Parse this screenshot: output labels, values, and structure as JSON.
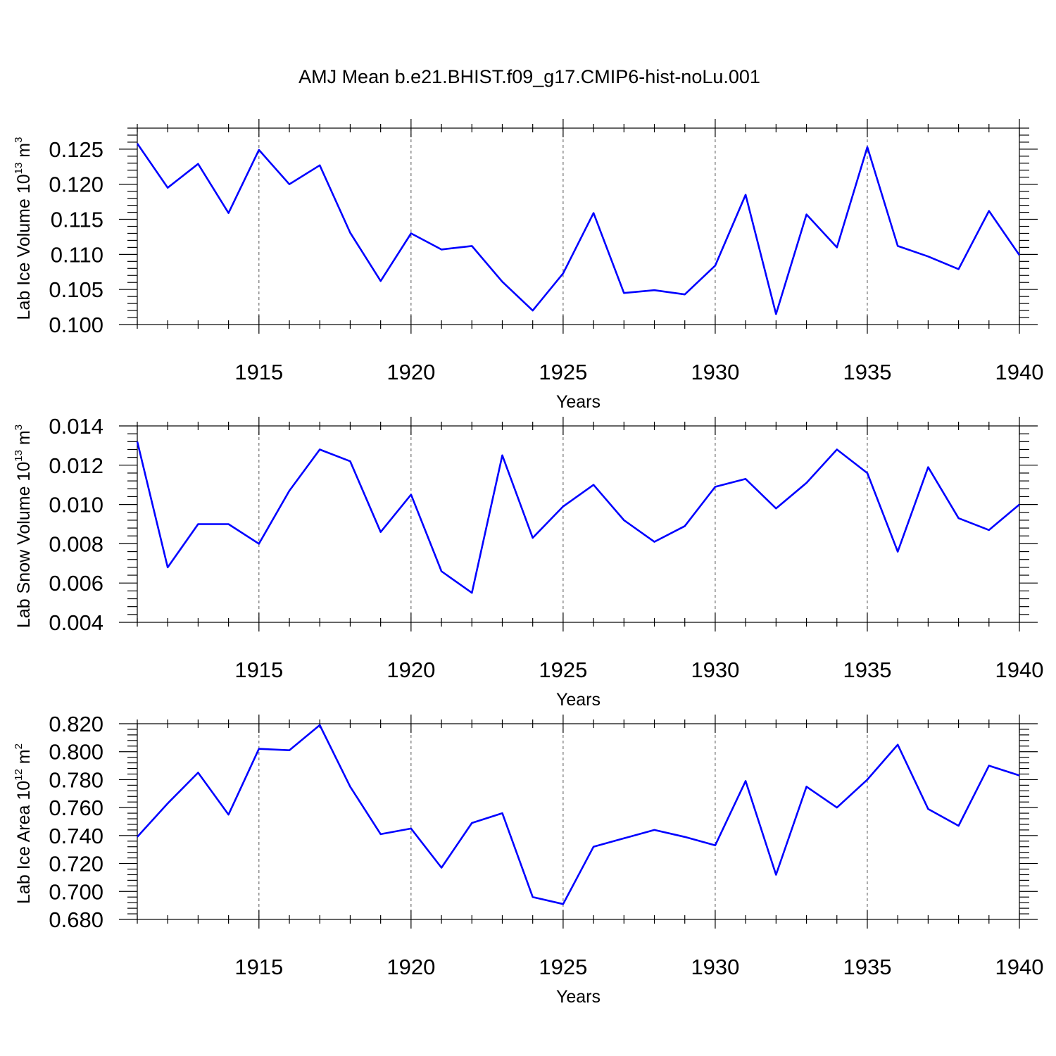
{
  "title": "AMJ Mean b.e21.BHIST.f09_g17.CMIP6-hist-noLu.001",
  "chart_data": [
    {
      "type": "line",
      "ylabel": "Lab Ice Volume 10",
      "ylabel_exp": "13",
      "ylabel_unit": " m",
      "ylabel_unit_exp": "3",
      "xlabel": "Years",
      "xlim": [
        1911,
        1940
      ],
      "ylim": [
        0.1,
        0.128
      ],
      "yticks": [
        0.1,
        0.105,
        0.11,
        0.115,
        0.12,
        0.125
      ],
      "ytick_labels": [
        "0.100",
        "0.105",
        "0.110",
        "0.115",
        "0.120",
        "0.125"
      ],
      "xticks": [
        1915,
        1920,
        1925,
        1930,
        1935,
        1940
      ],
      "xtick_labels": [
        "1915",
        "1920",
        "1925",
        "1930",
        "1935",
        "1940"
      ],
      "x": [
        1911,
        1912,
        1913,
        1914,
        1915,
        1916,
        1917,
        1918,
        1919,
        1920,
        1921,
        1922,
        1923,
        1924,
        1925,
        1926,
        1927,
        1928,
        1929,
        1930,
        1931,
        1932,
        1933,
        1934,
        1935,
        1936,
        1937,
        1938,
        1939,
        1940
      ],
      "values": [
        0.1258,
        0.1195,
        0.1229,
        0.1159,
        0.1249,
        0.12,
        0.1227,
        0.1131,
        0.1062,
        0.113,
        0.1107,
        0.1112,
        0.1061,
        0.102,
        0.1073,
        0.1159,
        0.1045,
        0.1049,
        0.1043,
        0.1084,
        0.1185,
        0.1015,
        0.1157,
        0.111,
        0.1253,
        0.1112,
        0.1097,
        0.1079,
        0.1162,
        0.1099
      ],
      "line_color": "#0000ff"
    },
    {
      "type": "line",
      "ylabel": "Lab Snow Volume 10",
      "ylabel_exp": "13",
      "ylabel_unit": " m",
      "ylabel_unit_exp": "3",
      "xlabel": "Years",
      "xlim": [
        1911,
        1940
      ],
      "ylim": [
        0.004,
        0.014
      ],
      "yticks": [
        0.004,
        0.006,
        0.008,
        0.01,
        0.012,
        0.014
      ],
      "ytick_labels": [
        "0.004",
        "0.006",
        "0.008",
        "0.010",
        "0.012",
        "0.014"
      ],
      "xticks": [
        1915,
        1920,
        1925,
        1930,
        1935,
        1940
      ],
      "xtick_labels": [
        "1915",
        "1920",
        "1925",
        "1930",
        "1935",
        "1940"
      ],
      "x": [
        1911,
        1912,
        1913,
        1914,
        1915,
        1916,
        1917,
        1918,
        1919,
        1920,
        1921,
        1922,
        1923,
        1924,
        1925,
        1926,
        1927,
        1928,
        1929,
        1930,
        1931,
        1932,
        1933,
        1934,
        1935,
        1936,
        1937,
        1938,
        1939,
        1940
      ],
      "values": [
        0.0132,
        0.0068,
        0.009,
        0.009,
        0.008,
        0.0107,
        0.0128,
        0.0122,
        0.0086,
        0.0105,
        0.0066,
        0.0055,
        0.0125,
        0.0083,
        0.0099,
        0.011,
        0.0092,
        0.0081,
        0.0089,
        0.0109,
        0.0113,
        0.0098,
        0.0111,
        0.0128,
        0.0116,
        0.0076,
        0.0119,
        0.0093,
        0.0087,
        0.01
      ],
      "line_color": "#0000ff"
    },
    {
      "type": "line",
      "ylabel": "Lab Ice Area 10",
      "ylabel_exp": "12",
      "ylabel_unit": " m",
      "ylabel_unit_exp": "2",
      "xlabel": "Years",
      "xlim": [
        1911,
        1940
      ],
      "ylim": [
        0.68,
        0.82
      ],
      "yticks": [
        0.68,
        0.7,
        0.72,
        0.74,
        0.76,
        0.78,
        0.8,
        0.82
      ],
      "ytick_labels": [
        "0.680",
        "0.700",
        "0.720",
        "0.740",
        "0.760",
        "0.780",
        "0.800",
        "0.820"
      ],
      "xticks": [
        1915,
        1920,
        1925,
        1930,
        1935,
        1940
      ],
      "xtick_labels": [
        "1915",
        "1920",
        "1925",
        "1930",
        "1935",
        "1940"
      ],
      "x": [
        1911,
        1912,
        1913,
        1914,
        1915,
        1916,
        1917,
        1918,
        1919,
        1920,
        1921,
        1922,
        1923,
        1924,
        1925,
        1926,
        1927,
        1928,
        1929,
        1930,
        1931,
        1932,
        1933,
        1934,
        1935,
        1936,
        1937,
        1938,
        1939,
        1940
      ],
      "values": [
        0.739,
        0.763,
        0.785,
        0.755,
        0.802,
        0.801,
        0.819,
        0.775,
        0.741,
        0.745,
        0.717,
        0.749,
        0.756,
        0.696,
        0.691,
        0.732,
        0.738,
        0.744,
        0.739,
        0.733,
        0.779,
        0.712,
        0.775,
        0.76,
        0.78,
        0.805,
        0.759,
        0.747,
        0.79,
        0.783
      ],
      "line_color": "#0000ff"
    }
  ]
}
